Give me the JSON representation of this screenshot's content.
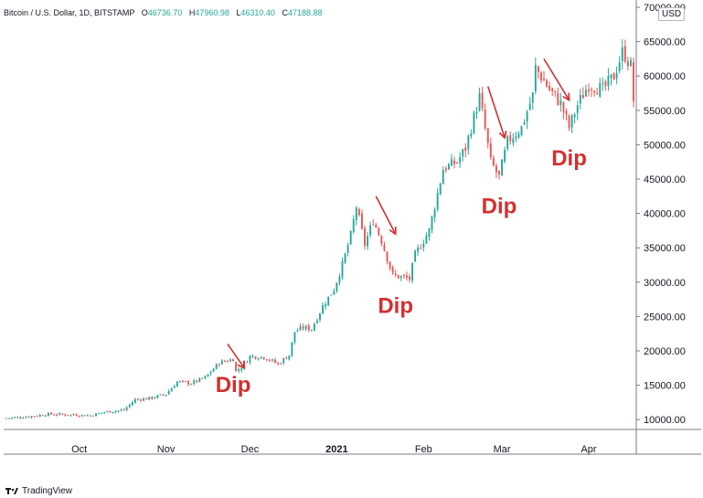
{
  "legend": {
    "symbol": "Bitcoin / U.S. Dollar, 1D, BITSTAMP",
    "open_label": "O",
    "open": "46736.70",
    "high_label": "H",
    "high": "47960.98",
    "low_label": "L",
    "low": "46310.40",
    "close_label": "C",
    "close": "47188.88"
  },
  "currency_badge": "USD",
  "footer_brand": "TradingView",
  "colors": {
    "up": "#26a69a",
    "down": "#ef5350",
    "annotation": "#d32f2f",
    "grid": "#e0e3eb",
    "axis_line": "#787b86",
    "text": "#131722"
  },
  "chart_data": {
    "type": "candlestick",
    "title": "Bitcoin / U.S. Dollar, 1D, BITSTAMP",
    "xlabel": "",
    "ylabel": "",
    "ylim": [
      7500,
      70000
    ],
    "grid": false,
    "x_range": [
      "2020-09-05",
      "2021-04-17"
    ],
    "y_ticks": [
      "70000.00",
      "65000.00",
      "60000.00",
      "55000.00",
      "50000.00",
      "45000.00",
      "40000.00",
      "35000.00",
      "30000.00",
      "25000.00",
      "20000.00",
      "15000.00",
      "10000.00"
    ],
    "y_tick_values": [
      70000,
      65000,
      60000,
      55000,
      50000,
      45000,
      40000,
      35000,
      30000,
      25000,
      20000,
      15000,
      10000
    ],
    "x_ticks": [
      {
        "label": "Oct",
        "date": "2020-10-01",
        "bold": false
      },
      {
        "label": "Nov",
        "date": "2020-11-01",
        "bold": false
      },
      {
        "label": "Dec",
        "date": "2020-12-01",
        "bold": false
      },
      {
        "label": "2021",
        "date": "2021-01-01",
        "bold": true
      },
      {
        "label": "Feb",
        "date": "2021-02-01",
        "bold": false
      },
      {
        "label": "Mar",
        "date": "2021-03-01",
        "bold": false
      },
      {
        "label": "Apr",
        "date": "2021-04-01",
        "bold": false
      }
    ],
    "close_path": [
      [
        "2020-09-05",
        10200
      ],
      [
        "2020-09-12",
        10400
      ],
      [
        "2020-09-20",
        10800
      ],
      [
        "2020-09-28",
        10700
      ],
      [
        "2020-10-05",
        10600
      ],
      [
        "2020-10-10",
        11100
      ],
      [
        "2020-10-17",
        11400
      ],
      [
        "2020-10-21",
        12900
      ],
      [
        "2020-10-26",
        13100
      ],
      [
        "2020-11-01",
        13700
      ],
      [
        "2020-11-05",
        15500
      ],
      [
        "2020-11-10",
        15300
      ],
      [
        "2020-11-15",
        16100
      ],
      [
        "2020-11-20",
        18300
      ],
      [
        "2020-11-25",
        18800
      ],
      [
        "2020-11-26",
        17000
      ],
      [
        "2020-11-28",
        17700
      ],
      [
        "2020-12-01",
        19200
      ],
      [
        "2020-12-06",
        19100
      ],
      [
        "2020-12-11",
        18100
      ],
      [
        "2020-12-15",
        19400
      ],
      [
        "2020-12-17",
        22800
      ],
      [
        "2020-12-20",
        23400
      ],
      [
        "2020-12-23",
        23200
      ],
      [
        "2020-12-27",
        26500
      ],
      [
        "2020-12-31",
        29000
      ],
      [
        "2021-01-03",
        32500
      ],
      [
        "2021-01-06",
        36800
      ],
      [
        "2021-01-08",
        41000
      ],
      [
        "2021-01-11",
        35500
      ],
      [
        "2021-01-14",
        39000
      ],
      [
        "2021-01-17",
        36000
      ],
      [
        "2021-01-21",
        31000
      ],
      [
        "2021-01-27",
        30500
      ],
      [
        "2021-01-29",
        34000
      ],
      [
        "2021-02-03",
        37500
      ],
      [
        "2021-02-08",
        46500
      ],
      [
        "2021-02-13",
        47500
      ],
      [
        "2021-02-16",
        49500
      ],
      [
        "2021-02-21",
        57000
      ],
      [
        "2021-02-25",
        47500
      ],
      [
        "2021-02-28",
        45300
      ],
      [
        "2021-03-03",
        50500
      ],
      [
        "2021-03-08",
        52500
      ],
      [
        "2021-03-12",
        57200
      ],
      [
        "2021-03-13",
        61200
      ],
      [
        "2021-03-18",
        58000
      ],
      [
        "2021-03-22",
        56000
      ],
      [
        "2021-03-25",
        52500
      ],
      [
        "2021-03-28",
        55800
      ],
      [
        "2021-04-01",
        58800
      ],
      [
        "2021-04-06",
        58000
      ],
      [
        "2021-04-10",
        60000
      ],
      [
        "2021-04-13",
        63500
      ],
      [
        "2021-04-14",
        63000
      ],
      [
        "2021-04-16",
        61500
      ],
      [
        "2021-04-17",
        56500
      ]
    ],
    "annotations": [
      {
        "label": "Dip",
        "date": "2020-11-25",
        "value": 14000,
        "arrow_from": [
          "2020-11-23",
          21000
        ],
        "arrow_to": [
          "2020-11-29",
          17500
        ]
      },
      {
        "label": "Dip",
        "date": "2021-01-22",
        "value": 25500,
        "arrow_from": [
          "2021-01-15",
          42500
        ],
        "arrow_to": [
          "2021-01-22",
          37000
        ]
      },
      {
        "label": "Dip",
        "date": "2021-02-28",
        "value": 40000,
        "arrow_from": [
          "2021-02-24",
          58500
        ],
        "arrow_to": [
          "2021-03-02",
          51000
        ]
      },
      {
        "label": "Dip",
        "date": "2021-03-25",
        "value": 47000,
        "arrow_from": [
          "2021-03-16",
          62500
        ],
        "arrow_to": [
          "2021-03-25",
          56500
        ]
      }
    ]
  }
}
